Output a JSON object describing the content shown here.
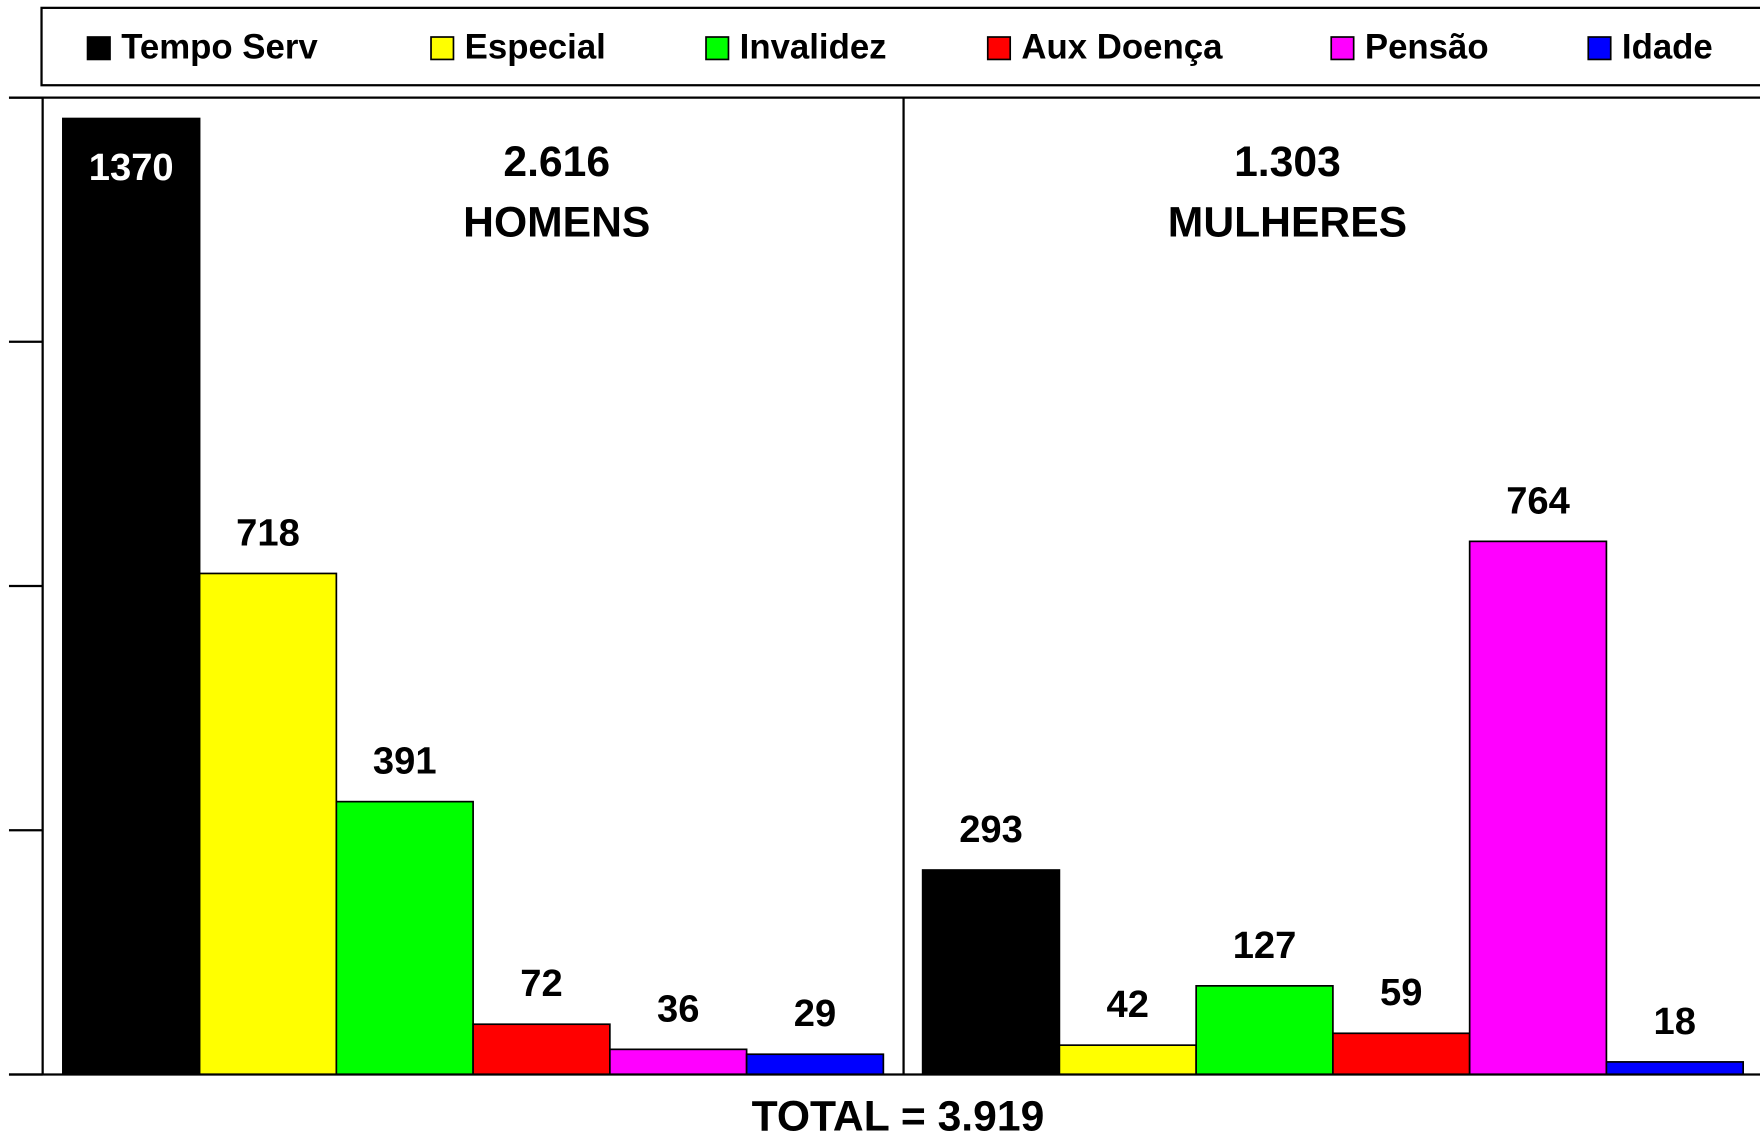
{
  "chart_data": {
    "type": "bar",
    "categories": [
      "HOMENS",
      "MULHERES"
    ],
    "category_totals": [
      "2.616",
      "1.303"
    ],
    "annotation": "TOTAL = 3.919",
    "series": [
      {
        "name": "Tempo Serv",
        "color": "#000000",
        "values": [
          1370,
          293
        ]
      },
      {
        "name": "Especial",
        "color": "#ffff00",
        "values": [
          718,
          42
        ]
      },
      {
        "name": "Invalidez",
        "color": "#00ff00",
        "values": [
          391,
          127
        ]
      },
      {
        "name": "Aux Doença",
        "color": "#ff0000",
        "values": [
          72,
          59
        ]
      },
      {
        "name": "Pensão",
        "color": "#ff00ff",
        "values": [
          36,
          764
        ]
      },
      {
        "name": "Idade",
        "color": "#0000ff",
        "values": [
          29,
          18
        ]
      }
    ],
    "ylim": [
      0,
      1400
    ],
    "yticks": [
      0,
      350,
      700,
      1050,
      1400
    ],
    "grid": false,
    "legend": "top"
  }
}
